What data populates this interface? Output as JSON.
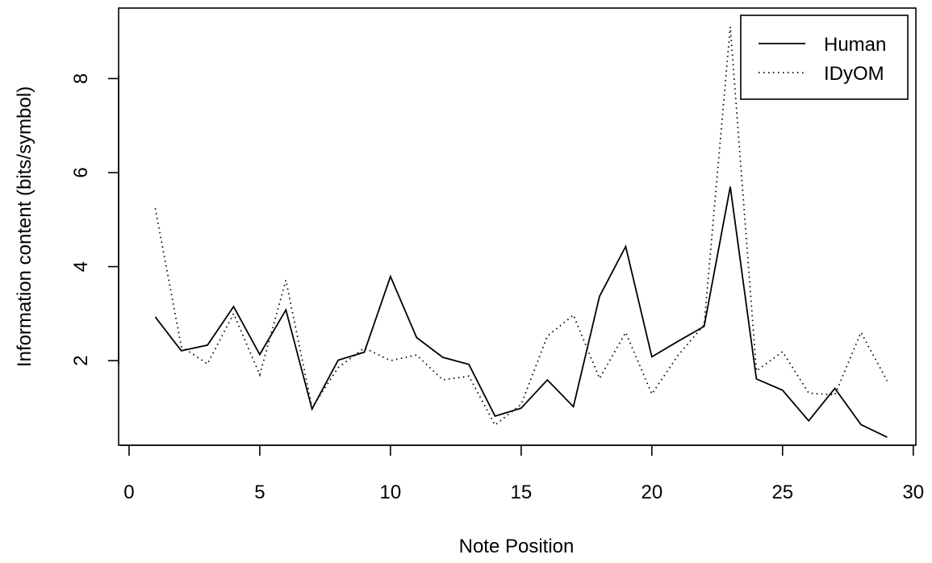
{
  "chart_data": {
    "type": "line",
    "title": "",
    "xlabel": "Note Position",
    "ylabel": "Information content (bits/symbol)",
    "xlim": [
      -0.4,
      30.1
    ],
    "ylim": [
      0.2,
      9.5
    ],
    "xticks": [
      0,
      5,
      10,
      15,
      20,
      25,
      30
    ],
    "yticks": [
      2,
      4,
      6,
      8
    ],
    "grid": false,
    "legend": "top-right",
    "x": [
      1,
      2,
      3,
      4,
      5,
      6,
      7,
      8,
      9,
      10,
      11,
      12,
      13,
      14,
      15,
      16,
      17,
      18,
      19,
      20,
      21,
      22,
      23,
      24,
      25,
      26,
      27,
      28,
      29
    ],
    "series": [
      {
        "name": "Human",
        "style": "solid",
        "values": [
          2.93,
          2.21,
          2.33,
          3.15,
          2.13,
          3.08,
          0.97,
          2.01,
          2.18,
          3.79,
          2.49,
          2.07,
          1.92,
          0.82,
          0.99,
          1.59,
          1.02,
          3.37,
          4.43,
          2.08,
          2.41,
          2.73,
          5.7,
          1.61,
          1.37,
          0.72,
          1.41,
          0.64,
          0.37
        ]
      },
      {
        "name": "IDyOM",
        "style": "dotted",
        "values": [
          5.24,
          2.3,
          1.93,
          3.0,
          1.7,
          3.71,
          1.0,
          1.85,
          2.27,
          2.0,
          2.12,
          1.59,
          1.67,
          0.63,
          1.07,
          2.52,
          2.97,
          1.62,
          2.6,
          1.29,
          2.11,
          2.76,
          9.1,
          1.78,
          2.19,
          1.31,
          1.27,
          2.6,
          1.57
        ]
      }
    ]
  }
}
